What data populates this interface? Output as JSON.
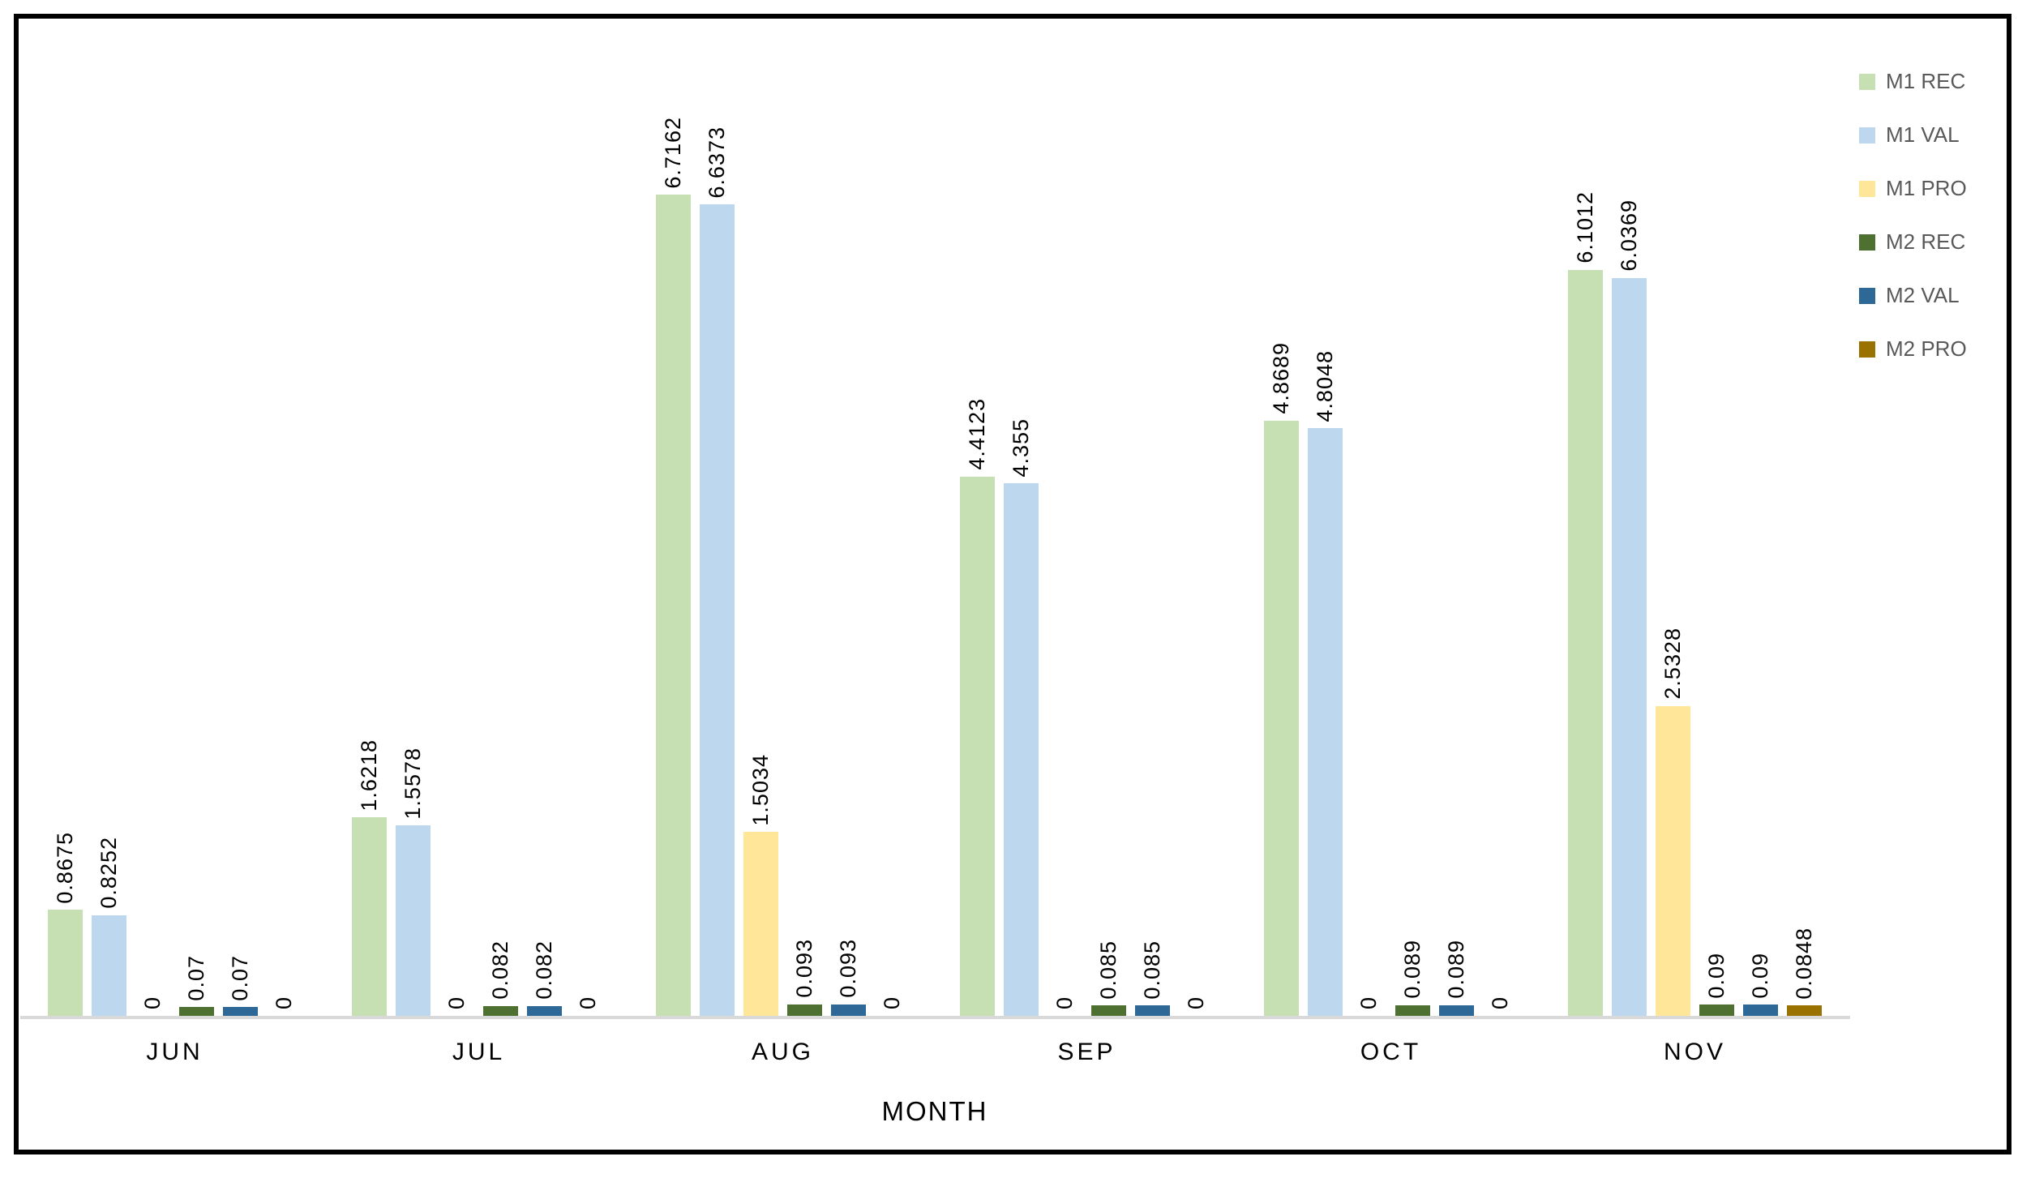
{
  "chart_data": {
    "type": "bar",
    "title": "",
    "xlabel": "MONTH",
    "ylabel": "",
    "categories": [
      "JUN",
      "JUL",
      "AUG",
      "SEP",
      "OCT",
      "NOV"
    ],
    "series": [
      {
        "name": "M1 REC",
        "color": "#c6e0b4",
        "values": [
          0.8675,
          1.6218,
          6.7162,
          4.4123,
          4.8689,
          6.1012
        ]
      },
      {
        "name": "M1 VAL",
        "color": "#bdd7ee",
        "values": [
          0.8252,
          1.5578,
          6.6373,
          4.355,
          4.8048,
          6.0369
        ]
      },
      {
        "name": "M1 PRO",
        "color": "#ffe699",
        "values": [
          0,
          0,
          1.5034,
          0,
          0,
          2.5328
        ]
      },
      {
        "name": "M2 REC",
        "color": "#4e7030",
        "values": [
          0.07,
          0.082,
          0.093,
          0.085,
          0.089,
          0.09
        ]
      },
      {
        "name": "M2 VAL",
        "color": "#2d6896",
        "values": [
          0.07,
          0.082,
          0.093,
          0.085,
          0.089,
          0.09
        ]
      },
      {
        "name": "M2 PRO",
        "color": "#997202",
        "values": [
          0,
          0,
          0,
          0,
          0,
          0.0848
        ]
      }
    ],
    "data_labels_rotated_90": true,
    "ylim": [
      0,
      8.3
    ],
    "y_axis_visible": false,
    "grid": false,
    "legend_position": "top-right",
    "axis_line_color": "#d9d9d9",
    "data_label_color": "#000000",
    "legend_text_color": "#595959",
    "frame_border_color": "#000000"
  }
}
